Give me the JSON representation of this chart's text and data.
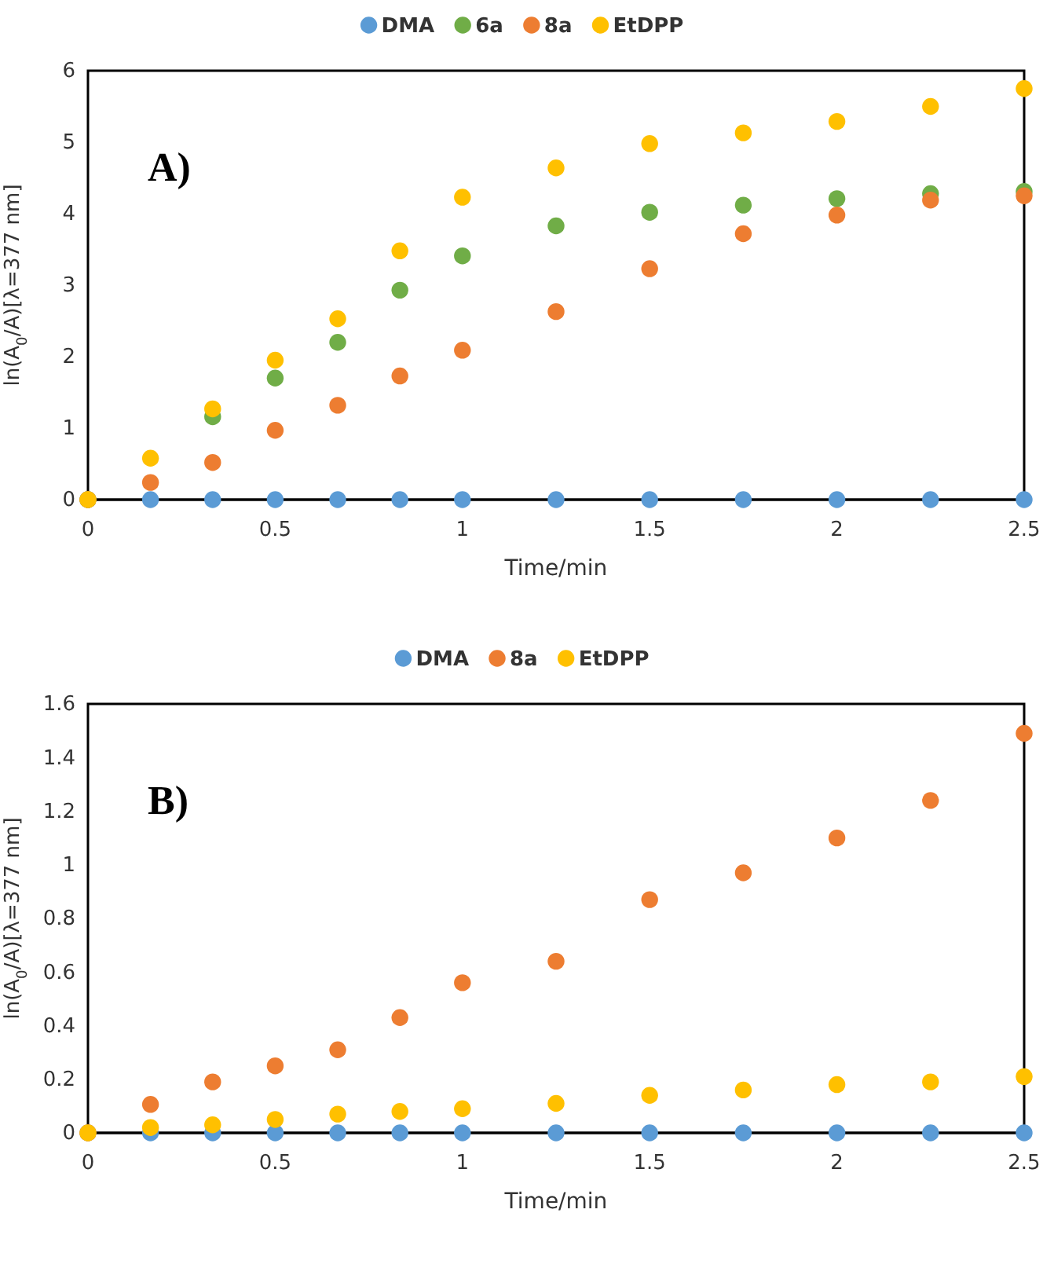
{
  "chart_data": [
    {
      "type": "scatter",
      "xlabel": "Time/min",
      "ylabel": "ln(A$_{0}$/A)[λ=377 nm]",
      "annotations": [
        "A)"
      ],
      "x": [
        0,
        0.167,
        0.333,
        0.5,
        0.667,
        0.833,
        1,
        1.25,
        1.5,
        1.75,
        2,
        2.25,
        2.5
      ],
      "xlim": [
        0,
        2.5
      ],
      "xticks": [
        0,
        0.5,
        1,
        1.5,
        2,
        2.5
      ],
      "ylim": [
        0,
        6
      ],
      "yticks": [
        0,
        1,
        2,
        3,
        4,
        5,
        6
      ],
      "grid": false,
      "legend": "top",
      "marker": "circle",
      "series": [
        {
          "name": "DMA",
          "color": "#5b9bd5",
          "values": [
            0,
            0,
            0,
            0,
            0,
            0,
            0,
            0,
            0,
            0,
            0,
            0,
            0
          ]
        },
        {
          "name": "6a",
          "color": "#70ad47",
          "values": [
            0,
            null,
            1.16,
            1.7,
            2.2,
            2.93,
            3.41,
            3.83,
            4.02,
            4.12,
            4.21,
            4.28,
            4.31
          ]
        },
        {
          "name": "8a",
          "color": "#ed7d31",
          "values": [
            0,
            0.24,
            0.52,
            0.97,
            1.32,
            1.73,
            2.09,
            2.63,
            3.23,
            3.72,
            3.98,
            4.19,
            4.25
          ]
        },
        {
          "name": "EtDPP",
          "color": "#ffc000",
          "values": [
            0,
            0.58,
            1.27,
            1.95,
            2.53,
            3.48,
            4.23,
            4.64,
            4.98,
            5.13,
            5.29,
            5.5,
            5.75
          ]
        }
      ]
    },
    {
      "type": "scatter",
      "xlabel": "Time/min",
      "ylabel": "ln(A$_{0}$/A)[λ=377 nm]",
      "annotations": [
        "B)"
      ],
      "x": [
        0,
        0.167,
        0.333,
        0.5,
        0.667,
        0.833,
        1,
        1.25,
        1.5,
        1.75,
        2,
        2.25,
        2.5
      ],
      "xlim": [
        0,
        2.5
      ],
      "xticks": [
        0,
        0.5,
        1,
        1.5,
        2,
        2.5
      ],
      "ylim": [
        0,
        1.6
      ],
      "yticks": [
        0,
        0.2,
        0.4,
        0.6,
        0.8,
        1,
        1.2,
        1.4,
        1.6
      ],
      "grid": false,
      "legend": "top",
      "marker": "circle",
      "series": [
        {
          "name": "DMA",
          "color": "#5b9bd5",
          "values": [
            0,
            0,
            0,
            0,
            0,
            0,
            0,
            0,
            0,
            0,
            0,
            0,
            0
          ]
        },
        {
          "name": "8a",
          "color": "#ed7d31",
          "values": [
            0,
            0.106,
            0.19,
            0.25,
            0.31,
            0.43,
            0.56,
            0.64,
            0.87,
            0.97,
            1.1,
            1.24,
            1.49
          ]
        },
        {
          "name": "EtDPP",
          "color": "#ffc000",
          "values": [
            0,
            0.02,
            0.03,
            0.05,
            0.07,
            0.08,
            0.09,
            0.11,
            0.14,
            0.16,
            0.18,
            0.19,
            0.21
          ]
        }
      ]
    }
  ]
}
